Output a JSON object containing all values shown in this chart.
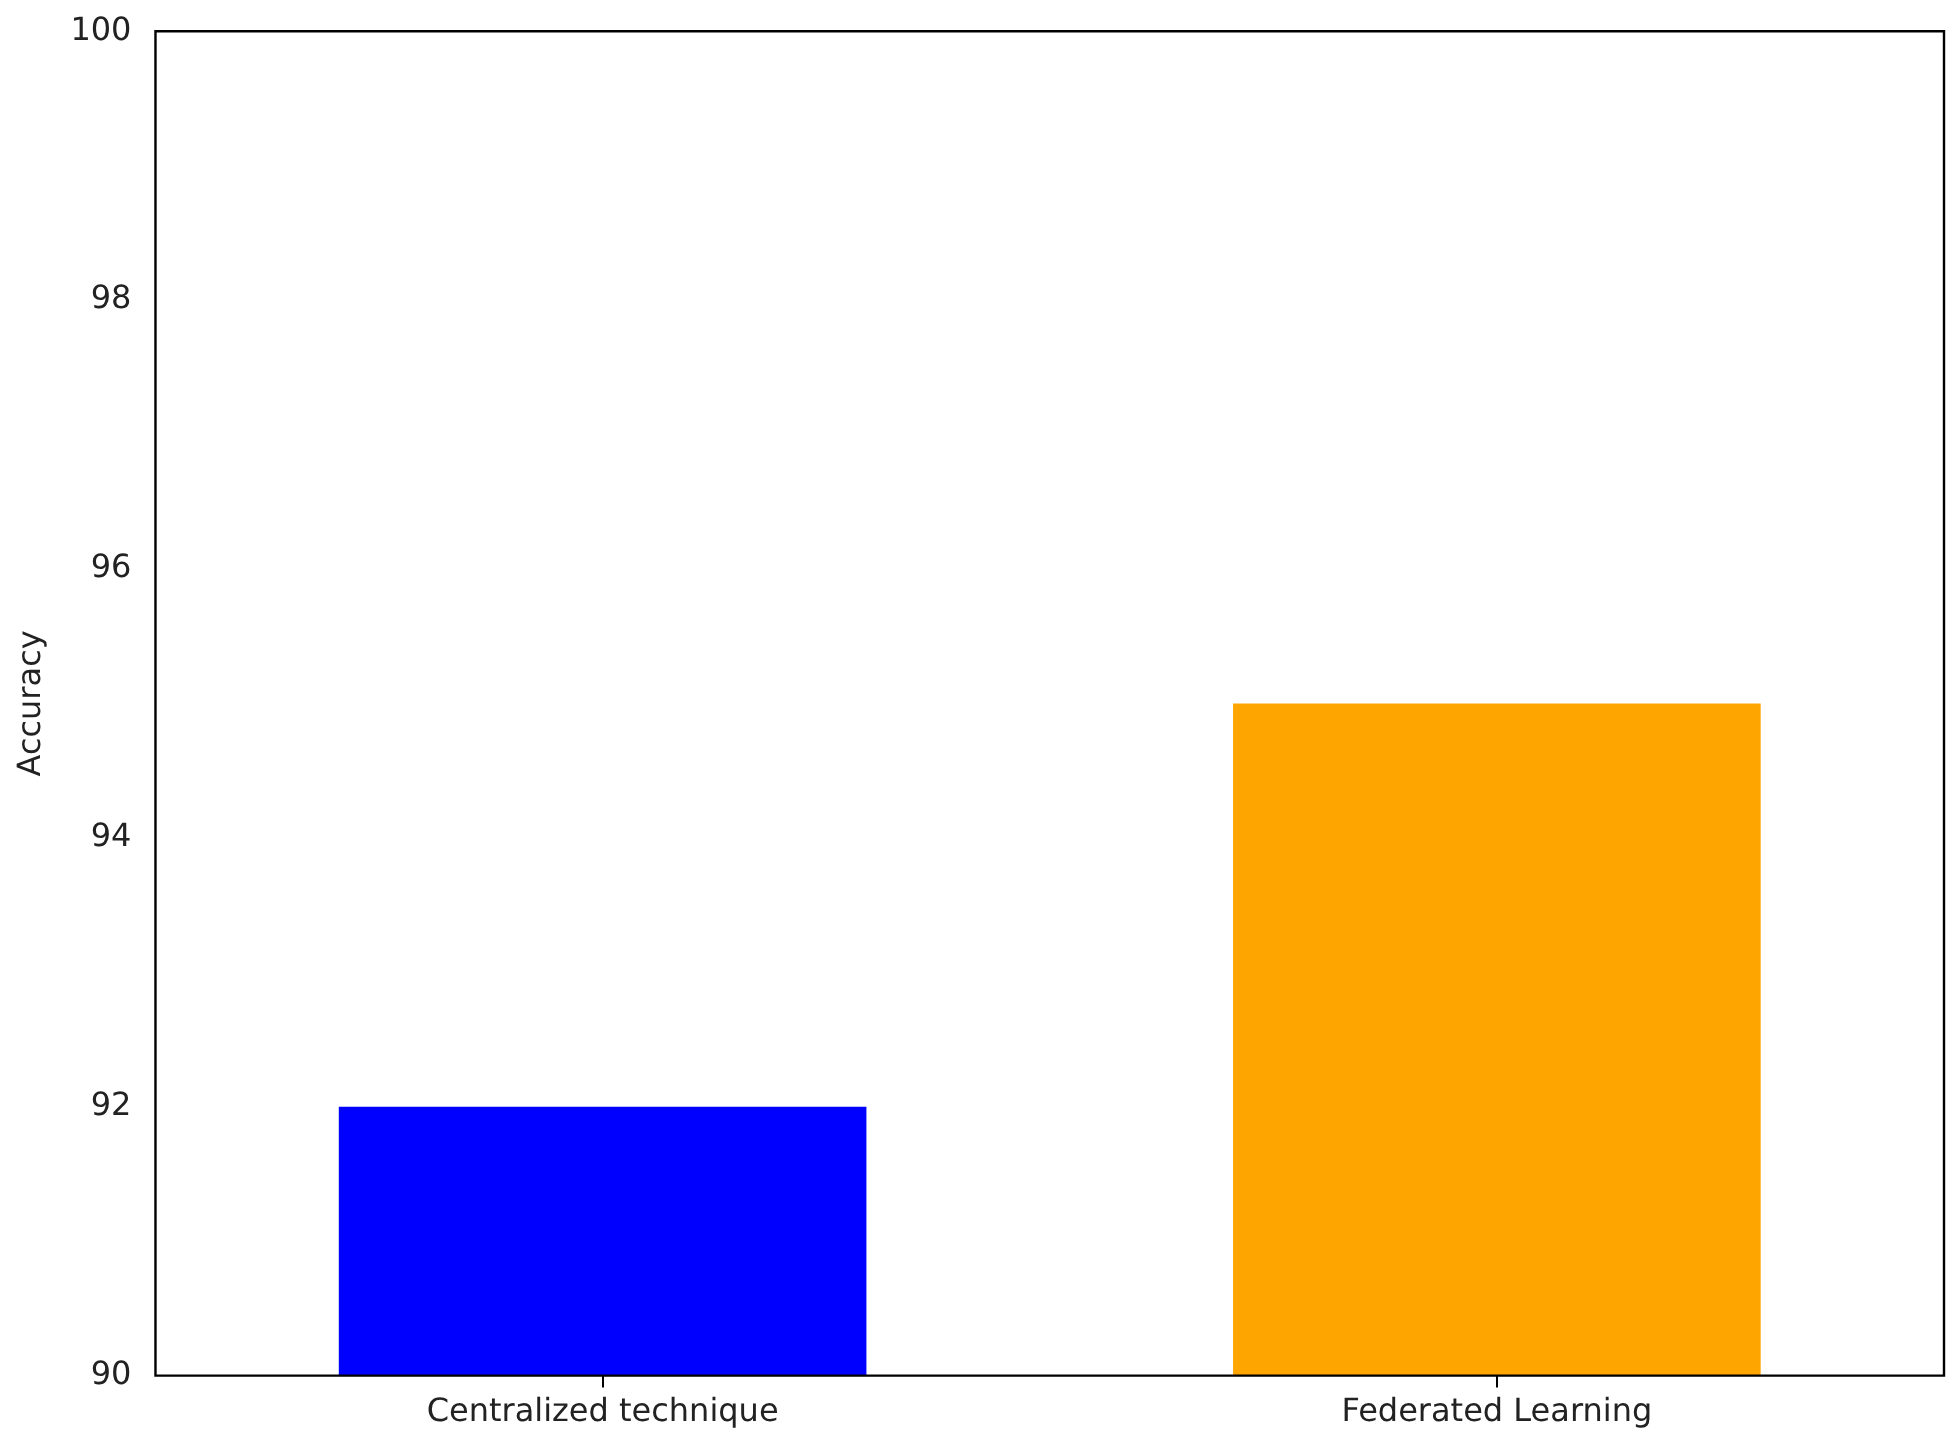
{
  "chart_data": {
    "type": "bar",
    "ylabel": "Accuracy",
    "categories": [
      "Centralized technique",
      "Federated Learning"
    ],
    "values": [
      92,
      95
    ],
    "colors": [
      "#0000ff",
      "#ffa500"
    ],
    "ylim": [
      90,
      100
    ],
    "yticks": [
      90,
      92,
      94,
      96,
      98,
      100
    ],
    "grid": false,
    "legend": false
  }
}
